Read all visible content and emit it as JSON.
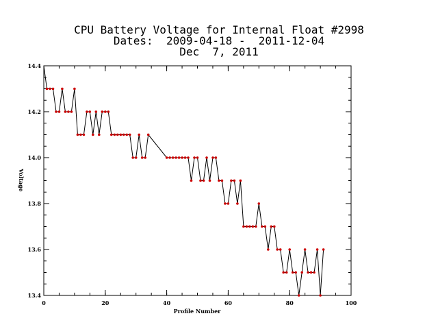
{
  "chart_data": {
    "type": "line",
    "title_lines": [
      "CPU Battery Voltage for Internal Float #2998",
      "Dates:  2009-04-18 -  2011-12-04",
      "Dec  7, 2011"
    ],
    "xlabel": "Profile Number",
    "ylabel": "Voltage",
    "xlim": [
      0,
      100
    ],
    "ylim": [
      13.4,
      14.4
    ],
    "xticks": [
      0,
      20,
      40,
      60,
      80,
      100
    ],
    "yticks": [
      13.4,
      13.6,
      13.8,
      14.0,
      14.2,
      14.4
    ],
    "xtick_labels": [
      "0",
      "20",
      "40",
      "60",
      "80",
      "100"
    ],
    "ytick_labels": [
      "13.4",
      "13.6",
      "13.8",
      "14.0",
      "14.2",
      "14.4"
    ],
    "marker_color": "#cc0000",
    "line_color": "#000000",
    "x": [
      1,
      2,
      3,
      4,
      5,
      6,
      7,
      8,
      9,
      10,
      11,
      12,
      13,
      14,
      15,
      16,
      17,
      18,
      19,
      20,
      21,
      22,
      23,
      24,
      25,
      26,
      27,
      28,
      29,
      30,
      31,
      32,
      33,
      34,
      40,
      41,
      42,
      43,
      44,
      45,
      46,
      47,
      48,
      49,
      50,
      51,
      52,
      53,
      54,
      55,
      56,
      57,
      58,
      59,
      60,
      61,
      62,
      63,
      64,
      65,
      66,
      67,
      68,
      69,
      70,
      71,
      72,
      73,
      74,
      75,
      76,
      77,
      78,
      79,
      80,
      81,
      82,
      83,
      84,
      85,
      86,
      87,
      88,
      89,
      90,
      91
    ],
    "y": [
      14.3,
      14.3,
      14.3,
      14.2,
      14.2,
      14.3,
      14.2,
      14.2,
      14.2,
      14.3,
      14.1,
      14.1,
      14.1,
      14.2,
      14.2,
      14.1,
      14.2,
      14.1,
      14.2,
      14.2,
      14.2,
      14.1,
      14.1,
      14.1,
      14.1,
      14.1,
      14.1,
      14.1,
      14.0,
      14.0,
      14.1,
      14.0,
      14.0,
      14.1,
      14.0,
      14.0,
      14.0,
      14.0,
      14.0,
      14.0,
      14.0,
      14.0,
      13.9,
      14.0,
      14.0,
      13.9,
      13.9,
      14.0,
      13.9,
      14.0,
      14.0,
      13.9,
      13.9,
      13.8,
      13.8,
      13.9,
      13.9,
      13.8,
      13.9,
      13.7,
      13.7,
      13.7,
      13.7,
      13.7,
      13.8,
      13.7,
      13.7,
      13.6,
      13.7,
      13.7,
      13.6,
      13.6,
      13.5,
      13.5,
      13.6,
      13.5,
      13.5,
      13.4,
      13.5,
      13.6,
      13.5,
      13.5,
      13.5,
      13.6,
      13.4,
      13.6
    ],
    "first_point": [
      0,
      14.4
    ],
    "grid": false,
    "legend": "none"
  }
}
